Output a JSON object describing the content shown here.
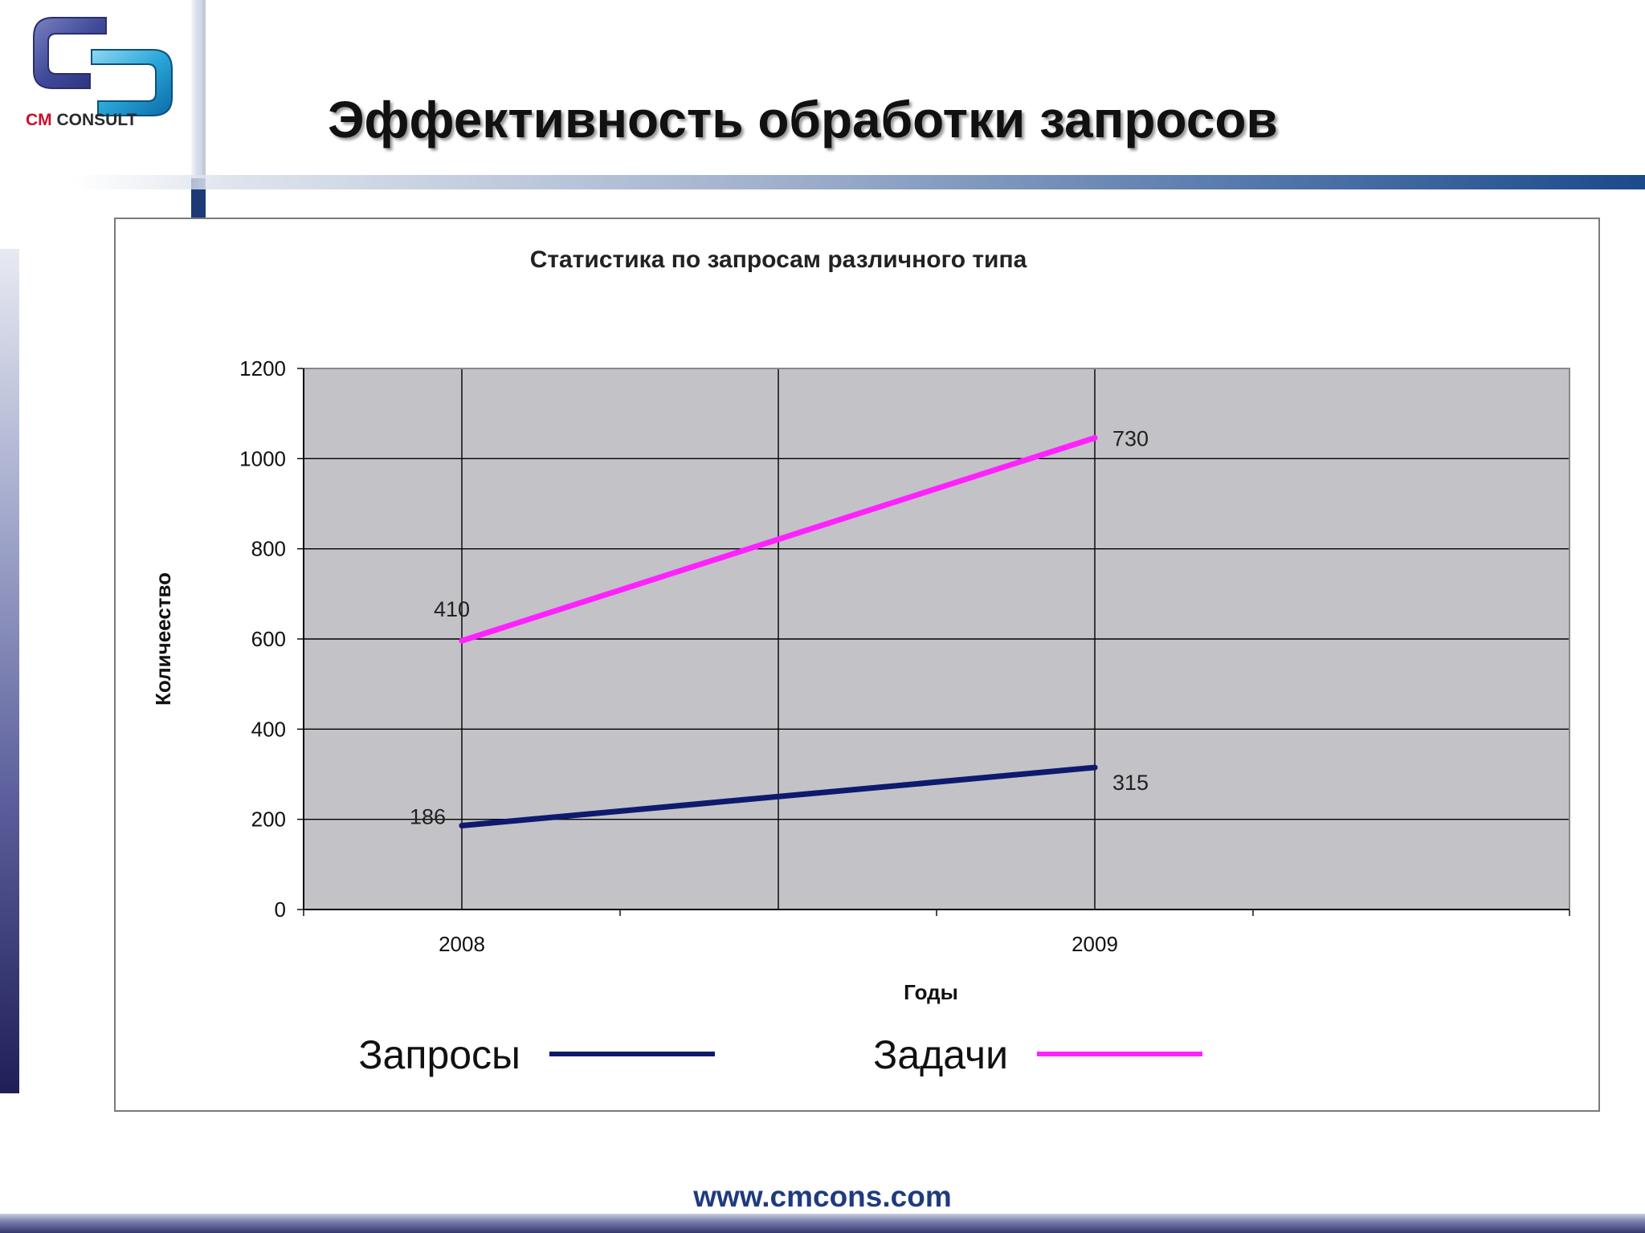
{
  "logo": {
    "brand_cm": "CM",
    "brand_rest": " CONSULT"
  },
  "header": {
    "title": "Эффективность обработки запросов"
  },
  "footer": {
    "url": "www.cmcons.com"
  },
  "colors": {
    "title_text": "#111111",
    "plot_bg": "#c3c2c7",
    "footer_url": "#1f3b80"
  },
  "chart_data": {
    "type": "line",
    "title": "Статистика по запросам различного типа",
    "xlabel": "Годы",
    "ylabel": "Количеество",
    "categories": [
      "2008",
      "",
      "2009",
      ""
    ],
    "x_tick_labels": [
      "2008",
      "2009"
    ],
    "yticks": [
      0,
      200,
      400,
      600,
      800,
      1000,
      1200
    ],
    "ylim": [
      0,
      1200
    ],
    "grid": true,
    "legend_position": "bottom",
    "series": [
      {
        "name": "Запросы",
        "color": "#0d1a6e",
        "points": [
          [
            0,
            186
          ],
          [
            2,
            315
          ]
        ],
        "data_labels": [
          "186",
          "315"
        ]
      },
      {
        "name": "Задачи",
        "color": "#ff22ff",
        "points": [
          [
            0,
            596
          ],
          [
            2,
            1046
          ]
        ],
        "data_labels": [
          "410",
          "730"
        ]
      }
    ]
  }
}
